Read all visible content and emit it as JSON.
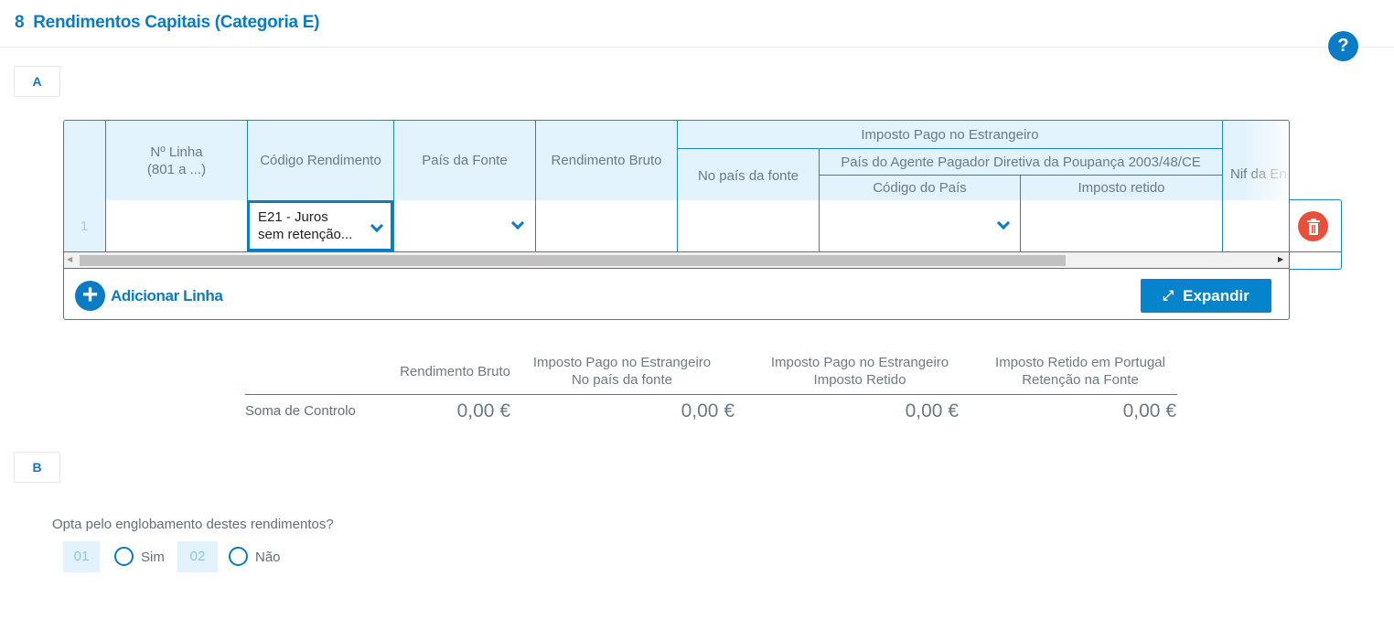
{
  "header": {
    "section_number": "8",
    "title": "Rendimentos Capitais (Categoria E)",
    "help_icon": "question-icon"
  },
  "section_a": {
    "label": "A",
    "table": {
      "columns": {
        "linha": "Nº Linha\n(801 a ...)",
        "codigo": "Código Rendimento",
        "pais": "País da Fonte",
        "bruto": "Rendimento Bruto",
        "imposto_group": "Imposto Pago no Estrangeiro",
        "no_pais": "No país da fonte",
        "agente_group": "País do Agente Pagador Diretiva da Poupança 2003/48/CE",
        "codigo_pais": "Código do País",
        "imposto_retido": "Imposto retido",
        "nif": "Nif da En"
      },
      "rows": [
        {
          "index": "1",
          "linha": "",
          "codigo": "E21 - Juros\nsem retenção...",
          "pais": "",
          "bruto": "",
          "no_pais": "",
          "codigo_pais": "",
          "imposto_retido": "",
          "nif": ""
        }
      ]
    },
    "add_line": "Adicionar Linha",
    "expand": "Expandir",
    "summary": {
      "headers": [
        "Rendimento Bruto",
        "Imposto Pago no Estrangeiro\nNo país da fonte",
        "Imposto Pago no Estrangeiro\nImposto Retido",
        "Imposto Retido em Portugal\nRetenção na Fonte"
      ],
      "row_label": "Soma de Controlo",
      "values": [
        "0,00 €",
        "0,00 €",
        "0,00 €",
        "0,00 €"
      ]
    }
  },
  "section_b": {
    "label": "B",
    "question": "Opta pelo englobamento destes rendimentos?",
    "options": [
      {
        "code": "01",
        "label": "Sim",
        "selected": false
      },
      {
        "code": "02",
        "label": "Não",
        "selected": false
      }
    ]
  },
  "colors": {
    "accent": "#0b7bc4",
    "header_bg": "#e3f3fd",
    "delete": "#e8503a"
  }
}
